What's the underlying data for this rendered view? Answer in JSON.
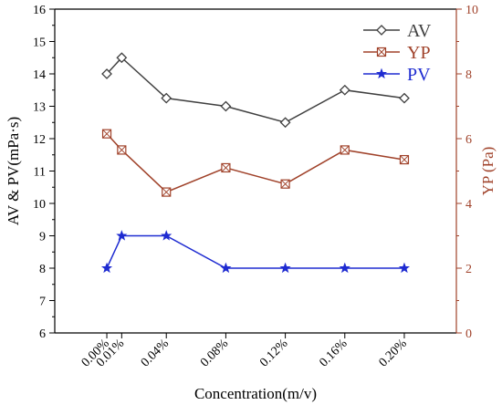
{
  "chart_data": {
    "type": "line",
    "title": "",
    "xlabel": "Concentration(m/v)",
    "ylabel_left": "AV & PV(mPa·s)",
    "ylabel_right": "YP (Pa)",
    "x": [
      0.0,
      0.01,
      0.04,
      0.08,
      0.12,
      0.16,
      0.2
    ],
    "x_tick_labels": [
      "0.00%",
      "0.01%",
      "0.04%",
      "0.08%",
      "0.12%",
      "0.16%",
      "0.20%"
    ],
    "xlim": [
      -0.035,
      0.235
    ],
    "ylim_left": [
      6,
      16
    ],
    "ylim_right": [
      0,
      10
    ],
    "left_ticks": [
      "6",
      "7",
      "8",
      "9",
      "10",
      "11",
      "12",
      "13",
      "14",
      "15",
      "16"
    ],
    "right_ticks": [
      "0",
      "2",
      "4",
      "6",
      "8",
      "10"
    ],
    "grid": false,
    "legend_position": "top-right",
    "series": [
      {
        "name": "AV",
        "axis": "left",
        "color": "#404040",
        "marker": "diamond",
        "values": [
          14.0,
          14.5,
          13.25,
          13.0,
          12.5,
          13.5,
          13.25
        ]
      },
      {
        "name": "YP",
        "axis": "right",
        "color": "#a0422a",
        "marker": "crossed-square",
        "values": [
          6.15,
          5.65,
          4.35,
          5.1,
          4.6,
          5.65,
          5.35
        ]
      },
      {
        "name": "PV",
        "axis": "left",
        "color": "#1e2bd1",
        "marker": "star",
        "values": [
          8,
          9,
          9,
          8,
          8,
          8,
          8
        ]
      }
    ]
  }
}
